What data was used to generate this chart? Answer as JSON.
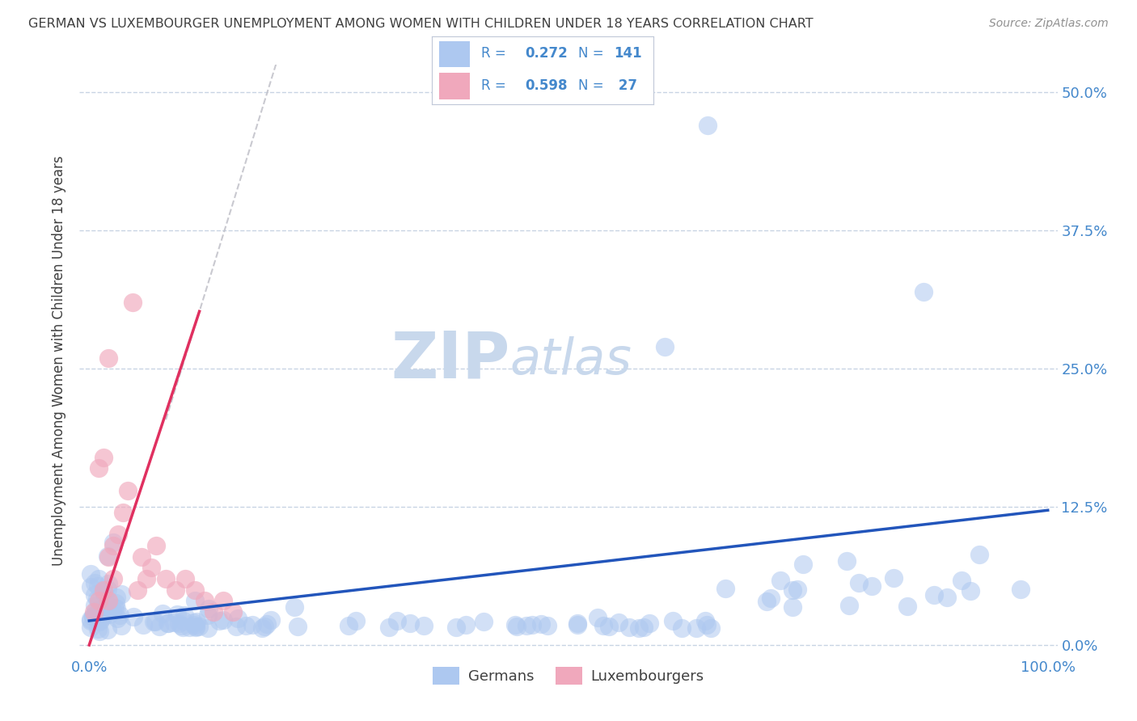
{
  "title": "GERMAN VS LUXEMBOURGER UNEMPLOYMENT AMONG WOMEN WITH CHILDREN UNDER 18 YEARS CORRELATION CHART",
  "source": "Source: ZipAtlas.com",
  "ylabel_label": "Unemployment Among Women with Children Under 18 years",
  "legend_label1": "Germans",
  "legend_label2": "Luxembourgers",
  "legend_R1": "0.272",
  "legend_N1": "141",
  "legend_R2": "0.598",
  "legend_N2": " 27",
  "watermark_zip": "ZIP",
  "watermark_atlas": "atlas",
  "blue_scatter_color": "#adc8f0",
  "pink_scatter_color": "#f0a8bc",
  "blue_line_color": "#2255bb",
  "pink_line_color": "#e03060",
  "dashed_line_color": "#c0c0c8",
  "title_color": "#404040",
  "axis_label_color": "#404040",
  "tick_label_color": "#4488cc",
  "watermark_color": "#c8d8ec",
  "grid_color": "#c8d4e4",
  "background_color": "#ffffff",
  "legend_text_color": "#4488cc",
  "legend_border_color": "#c0c8d8",
  "blue_R": 0.272,
  "blue_N": 141,
  "pink_R": 0.598,
  "pink_N": 27,
  "xlim": [
    0.0,
    1.0
  ],
  "ylim": [
    0.0,
    0.52
  ],
  "ytick_vals": [
    0.0,
    0.125,
    0.25,
    0.375,
    0.5
  ],
  "ytick_labels": [
    "0.0%",
    "12.5%",
    "25.0%",
    "37.5%",
    "50.0%"
  ],
  "xtick_vals": [
    0.0,
    1.0
  ],
  "xtick_labels": [
    "0.0%",
    "100.0%"
  ]
}
